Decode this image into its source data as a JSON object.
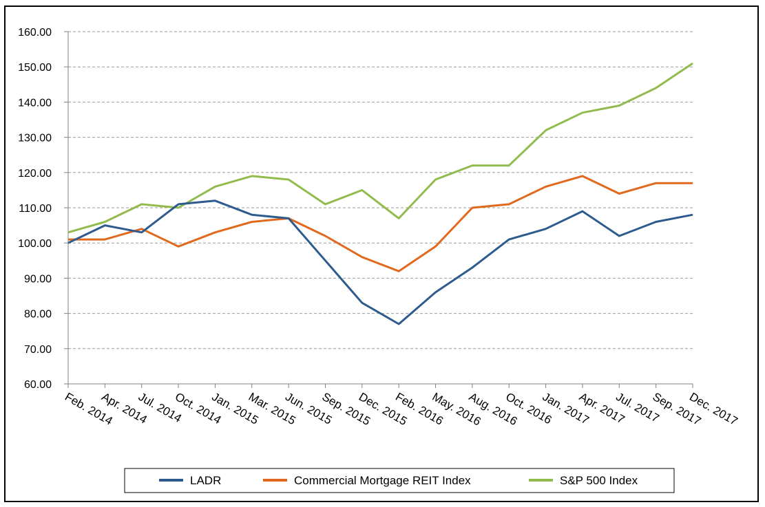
{
  "chart_data": {
    "type": "line",
    "title": "",
    "xlabel": "",
    "ylabel": "",
    "ylim": [
      60,
      160
    ],
    "yticks": [
      "160.00",
      "150.00",
      "140.00",
      "130.00",
      "120.00",
      "110.00",
      "100.00",
      "90.00",
      "80.00",
      "70.00",
      "60.00"
    ],
    "grid": "horizontal-dashed",
    "legend_position": "bottom",
    "categories": [
      "Feb. 2014",
      "Apr. 2014",
      "Jul. 2014",
      "Oct. 2014",
      "Jan. 2015",
      "Mar. 2015",
      "Jun. 2015",
      "Sep. 2015",
      "Dec. 2015",
      "Feb. 2016",
      "May. 2016",
      "Aug. 2016",
      "Oct. 2016",
      "Jan. 2017",
      "Apr. 2017",
      "Jul. 2017",
      "Sep. 2017",
      "Dec. 2017"
    ],
    "series": [
      {
        "name": "LADR",
        "color": "#2E5B8E",
        "values": [
          100,
          105,
          103,
          111,
          112,
          108,
          107,
          95,
          83,
          77,
          86,
          93,
          101,
          104,
          109,
          102,
          106,
          108
        ]
      },
      {
        "name": "Commercial Mortgage REIT Index",
        "color": "#E0691E",
        "values": [
          101,
          101,
          104,
          99,
          103,
          106,
          107,
          102,
          96,
          92,
          99,
          110,
          111,
          116,
          119,
          114,
          117,
          117
        ]
      },
      {
        "name": "S&P 500 Index",
        "color": "#92BB4D",
        "values": [
          103,
          106,
          111,
          110,
          116,
          119,
          118,
          111,
          115,
          107,
          118,
          122,
          122,
          132,
          137,
          139,
          144,
          151
        ]
      }
    ]
  }
}
